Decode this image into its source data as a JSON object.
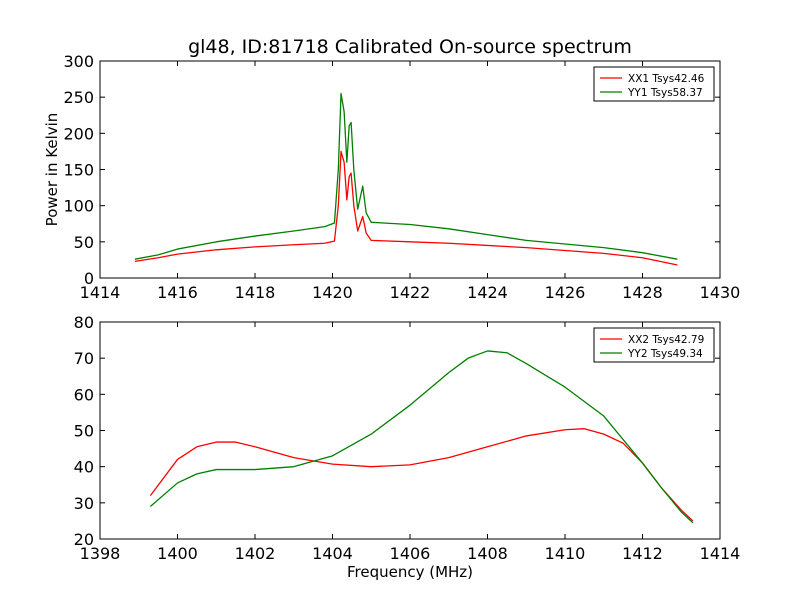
{
  "figure": {
    "title": "gl48, ID:81718 Calibrated On-source spectrum",
    "xlabel": "Frequency (MHz)"
  },
  "chart_data": [
    {
      "type": "line",
      "ylabel": "Power in Kelvin",
      "xlim": [
        1414,
        1430
      ],
      "ylim": [
        0,
        300
      ],
      "xticks": [
        1414,
        1416,
        1418,
        1420,
        1422,
        1424,
        1426,
        1428,
        1430
      ],
      "yticks": [
        0,
        50,
        100,
        150,
        200,
        250,
        300
      ],
      "legend_position": "top-right",
      "series": [
        {
          "name": "XX1 Tsys42.46",
          "color": "#ff0000",
          "points": [
            [
              1414.9,
              23
            ],
            [
              1415.5,
              28
            ],
            [
              1416,
              33
            ],
            [
              1417,
              39
            ],
            [
              1418,
              43
            ],
            [
              1419,
              46
            ],
            [
              1419.8,
              48
            ],
            [
              1420.05,
              51
            ],
            [
              1420.15,
              100
            ],
            [
              1420.22,
              175
            ],
            [
              1420.3,
              160
            ],
            [
              1420.37,
              108
            ],
            [
              1420.43,
              140
            ],
            [
              1420.48,
              145
            ],
            [
              1420.55,
              100
            ],
            [
              1420.65,
              65
            ],
            [
              1420.78,
              85
            ],
            [
              1420.87,
              62
            ],
            [
              1421,
              52
            ],
            [
              1422,
              50
            ],
            [
              1423,
              48
            ],
            [
              1424,
              45
            ],
            [
              1425,
              42
            ],
            [
              1426,
              38
            ],
            [
              1427,
              34
            ],
            [
              1428,
              28
            ],
            [
              1428.9,
              18
            ]
          ]
        },
        {
          "name": "YY1 Tsys58.37",
          "color": "#008000",
          "points": [
            [
              1414.9,
              26
            ],
            [
              1415.5,
              32
            ],
            [
              1416,
              40
            ],
            [
              1417,
              50
            ],
            [
              1418,
              58
            ],
            [
              1419,
              65
            ],
            [
              1419.8,
              71
            ],
            [
              1420.05,
              76
            ],
            [
              1420.15,
              150
            ],
            [
              1420.22,
              255
            ],
            [
              1420.3,
              230
            ],
            [
              1420.37,
              160
            ],
            [
              1420.43,
              210
            ],
            [
              1420.48,
              215
            ],
            [
              1420.55,
              150
            ],
            [
              1420.65,
              95
            ],
            [
              1420.78,
              127
            ],
            [
              1420.87,
              90
            ],
            [
              1421,
              77
            ],
            [
              1422,
              74
            ],
            [
              1423,
              68
            ],
            [
              1424,
              60
            ],
            [
              1425,
              52
            ],
            [
              1426,
              47
            ],
            [
              1427,
              42
            ],
            [
              1428,
              35
            ],
            [
              1428.9,
              26
            ]
          ]
        }
      ]
    },
    {
      "type": "line",
      "ylabel": "",
      "xlim": [
        1398,
        1414
      ],
      "ylim": [
        20,
        80
      ],
      "xticks": [
        1398,
        1400,
        1402,
        1404,
        1406,
        1408,
        1410,
        1412,
        1414
      ],
      "yticks": [
        20,
        30,
        40,
        50,
        60,
        70,
        80
      ],
      "legend_position": "top-right",
      "series": [
        {
          "name": "XX2 Tsys42.79",
          "color": "#ff0000",
          "points": [
            [
              1399.3,
              32
            ],
            [
              1400,
              42
            ],
            [
              1400.5,
              45.5
            ],
            [
              1401,
              46.8
            ],
            [
              1401.5,
              46.8
            ],
            [
              1402,
              45.5
            ],
            [
              1403,
              42.5
            ],
            [
              1404,
              40.7
            ],
            [
              1405,
              40
            ],
            [
              1406,
              40.5
            ],
            [
              1407,
              42.5
            ],
            [
              1408,
              45.5
            ],
            [
              1409,
              48.5
            ],
            [
              1410,
              50.2
            ],
            [
              1410.5,
              50.5
            ],
            [
              1411,
              49
            ],
            [
              1411.5,
              46.5
            ],
            [
              1412,
              41
            ],
            [
              1412.5,
              34
            ],
            [
              1413,
              28
            ],
            [
              1413.3,
              25
            ]
          ]
        },
        {
          "name": "YY2 Tsys49.34",
          "color": "#008000",
          "points": [
            [
              1399.3,
              29
            ],
            [
              1400,
              35.5
            ],
            [
              1400.5,
              38
            ],
            [
              1401,
              39.2
            ],
            [
              1402,
              39.2
            ],
            [
              1403,
              40
            ],
            [
              1404,
              43
            ],
            [
              1405,
              49
            ],
            [
              1406,
              57
            ],
            [
              1407,
              66
            ],
            [
              1407.5,
              70
            ],
            [
              1408,
              72
            ],
            [
              1408.5,
              71.5
            ],
            [
              1409,
              68.5
            ],
            [
              1410,
              62
            ],
            [
              1411,
              54
            ],
            [
              1412,
              41
            ],
            [
              1412.5,
              34
            ],
            [
              1413,
              27.5
            ],
            [
              1413.3,
              24.5
            ]
          ]
        }
      ]
    }
  ]
}
